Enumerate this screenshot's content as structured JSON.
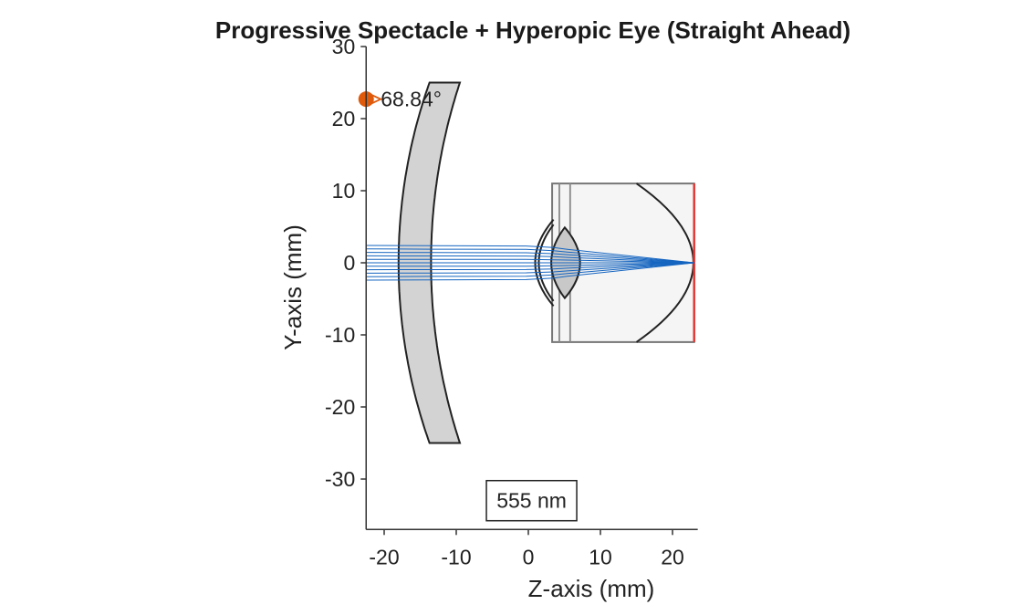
{
  "title": "Progressive Spectacle + Hyperopic Eye (Straight Ahead)",
  "chart_data": {
    "type": "diagram",
    "xlabel": "Z-axis (mm)",
    "ylabel": "Y-axis (mm)",
    "xlim": [
      -22.5,
      23.5
    ],
    "ylim": [
      -37,
      30
    ],
    "xticks": [
      {
        "value": -20,
        "label": "-20"
      },
      {
        "value": -10,
        "label": "-10"
      },
      {
        "value": 0,
        "label": "0"
      },
      {
        "value": 10,
        "label": "10"
      },
      {
        "value": 20,
        "label": "20"
      }
    ],
    "yticks": [
      {
        "value": 30,
        "label": "30"
      },
      {
        "value": 20,
        "label": "20"
      },
      {
        "value": 10,
        "label": "10"
      },
      {
        "value": 0,
        "label": "0"
      },
      {
        "value": -10,
        "label": "-10"
      },
      {
        "value": -20,
        "label": "-20"
      },
      {
        "value": -30,
        "label": "-30"
      }
    ],
    "grid": false,
    "annotations": [
      {
        "text": "555 nm",
        "x": -0.5,
        "y": -33,
        "boxed": true
      },
      {
        "text": "68.84°",
        "x": -22.5,
        "y": 22.7
      }
    ],
    "colors": {
      "rays": "#1565c0",
      "lens_fill": "#d3d3d3",
      "eye_fill": "#f5f5f5",
      "outline": "#222222",
      "retina": "#e53935",
      "marker": "#e05a0c"
    },
    "rays": {
      "count": 11,
      "y_start": -2.4,
      "y_end": 2.4,
      "z_start": -22.5,
      "focus_z": 23
    },
    "spectacle": {
      "sag1": -18,
      "sag2": -13.5,
      "r1": 75,
      "r2": 80,
      "half_height": 25
    },
    "eye": {
      "z_front": 3.3,
      "z_back": 23,
      "half_height": 11
    }
  }
}
